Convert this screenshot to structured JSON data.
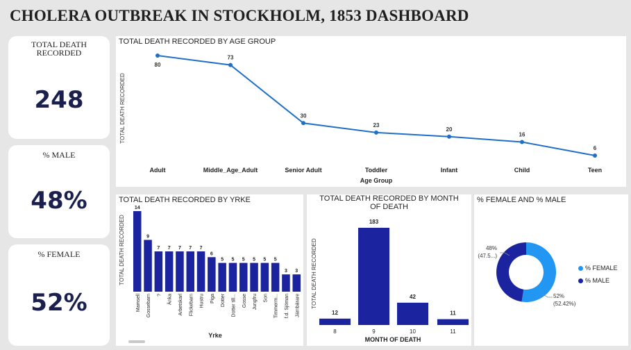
{
  "title": "CHOLERA OUTBREAK IN STOCKHOLM, 1853 DASHBOARD",
  "kpis": {
    "total_label": "TOTAL DEATH RECORDED",
    "total_value": "248",
    "male_label": "% MALE",
    "male_value": "48%",
    "female_label": "% FEMALE",
    "female_value": "52%"
  },
  "colors": {
    "line": "#1f6fc6",
    "bar": "#1b239e",
    "female": "#2196f3",
    "male": "#1b239e"
  },
  "chart_data": [
    {
      "type": "line",
      "title": "TOTAL DEATH RECORDED BY AGE GROUP",
      "xlabel": "Age Group",
      "ylabel": "TOTAL DEATH RECORDED",
      "categories": [
        "Adult",
        "Middle_Age_Adult",
        "Senior Adult",
        "Toddler",
        "Infant",
        "Child",
        "Teen"
      ],
      "values": [
        80,
        73,
        30,
        23,
        20,
        16,
        6
      ],
      "grid": false
    },
    {
      "type": "bar",
      "title": "TOTAL DEATH RECORDED BY YRKE",
      "xlabel": "Yrke",
      "ylabel": "TOTAL DEATH RECORDED",
      "categories": [
        "Mamsell",
        "Gossebarn",
        "?",
        "Änka",
        "Arbetskarl",
        "Flickebarn",
        "Hustru",
        "Piga",
        "Dotter",
        "Dotter till...",
        "Gosse",
        "Jungfru",
        "Son",
        "Timmerm...",
        "f.d. Sjöman",
        "Järnbärare"
      ],
      "values": [
        14,
        9,
        7,
        7,
        7,
        7,
        7,
        6,
        5,
        5,
        5,
        5,
        5,
        5,
        3,
        3
      ],
      "value_labels": [
        "14",
        "9",
        "7",
        "7",
        "7",
        "7",
        "7",
        "6",
        "5",
        "5",
        "5",
        "5",
        "5",
        "5",
        "3",
        "3"
      ]
    },
    {
      "type": "bar",
      "title": "TOTAL DEATH RECORDED BY MONTH OF DEATH",
      "xlabel": "MONTH OF DEATH",
      "ylabel": "TOTAL DEATH RECORDED",
      "categories": [
        "8",
        "9",
        "10",
        "11"
      ],
      "values": [
        12,
        183,
        42,
        11
      ]
    },
    {
      "type": "pie",
      "title": "% FEMALE AND % MALE",
      "labels": [
        "% FEMALE",
        "% MALE"
      ],
      "values": [
        52.42,
        47.58
      ],
      "slice_labels": [
        {
          "main": "52%",
          "sub": "(52.42%)"
        },
        {
          "main": "48%",
          "sub": "(47.5...)"
        }
      ],
      "legend": "right"
    }
  ]
}
